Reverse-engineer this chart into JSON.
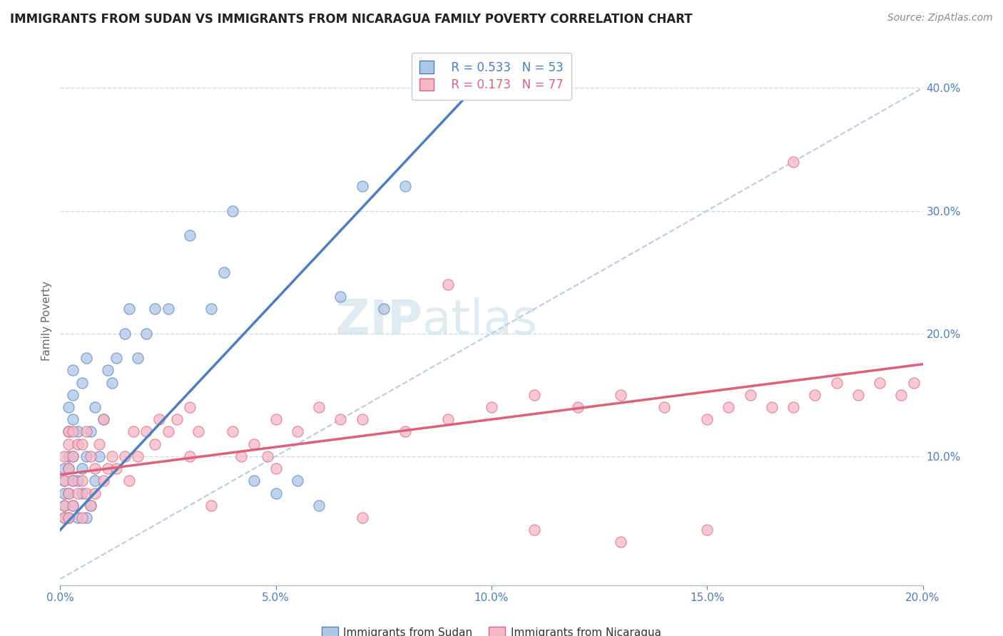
{
  "title": "IMMIGRANTS FROM SUDAN VS IMMIGRANTS FROM NICARAGUA FAMILY POVERTY CORRELATION CHART",
  "source": "Source: ZipAtlas.com",
  "ylabel": "Family Poverty",
  "xlim": [
    0.0,
    0.2
  ],
  "ylim": [
    -0.005,
    0.425
  ],
  "xticks": [
    0.0,
    0.05,
    0.1,
    0.15,
    0.2
  ],
  "yticks": [
    0.0,
    0.1,
    0.2,
    0.3,
    0.4
  ],
  "xtick_labels": [
    "0.0%",
    "5.0%",
    "10.0%",
    "15.0%",
    "20.0%"
  ],
  "ytick_labels": [
    "",
    "10.0%",
    "20.0%",
    "30.0%",
    "40.0%"
  ],
  "sudan_color": "#aec6e8",
  "nicaragua_color": "#f5b8c8",
  "sudan_line_color": "#4a7fc1",
  "nicaragua_line_color": "#e0607a",
  "dashed_line_color": "#b8cce4",
  "legend_R_sudan": "R = 0.533",
  "legend_N_sudan": "N = 53",
  "legend_R_nicaragua": "R = 0.173",
  "legend_N_nicaragua": "N = 77",
  "legend_label_sudan": "Immigrants from Sudan",
  "legend_label_nicaragua": "Immigrants from Nicaragua",
  "sudan_x": [
    0.001,
    0.001,
    0.001,
    0.001,
    0.001,
    0.002,
    0.002,
    0.002,
    0.002,
    0.002,
    0.002,
    0.003,
    0.003,
    0.003,
    0.003,
    0.003,
    0.003,
    0.004,
    0.004,
    0.004,
    0.005,
    0.005,
    0.005,
    0.006,
    0.006,
    0.006,
    0.007,
    0.007,
    0.008,
    0.008,
    0.009,
    0.01,
    0.011,
    0.012,
    0.013,
    0.015,
    0.016,
    0.018,
    0.02,
    0.022,
    0.025,
    0.03,
    0.035,
    0.038,
    0.04,
    0.045,
    0.05,
    0.055,
    0.06,
    0.065,
    0.07,
    0.075,
    0.08
  ],
  "sudan_y": [
    0.05,
    0.06,
    0.07,
    0.08,
    0.09,
    0.05,
    0.07,
    0.09,
    0.1,
    0.12,
    0.14,
    0.06,
    0.08,
    0.1,
    0.13,
    0.15,
    0.17,
    0.05,
    0.08,
    0.12,
    0.07,
    0.09,
    0.16,
    0.05,
    0.1,
    0.18,
    0.06,
    0.12,
    0.08,
    0.14,
    0.1,
    0.13,
    0.17,
    0.16,
    0.18,
    0.2,
    0.22,
    0.18,
    0.2,
    0.22,
    0.22,
    0.28,
    0.22,
    0.25,
    0.3,
    0.08,
    0.07,
    0.08,
    0.06,
    0.23,
    0.32,
    0.22,
    0.32
  ],
  "nicaragua_x": [
    0.001,
    0.001,
    0.001,
    0.001,
    0.002,
    0.002,
    0.002,
    0.002,
    0.002,
    0.003,
    0.003,
    0.003,
    0.003,
    0.004,
    0.004,
    0.005,
    0.005,
    0.005,
    0.006,
    0.006,
    0.007,
    0.007,
    0.008,
    0.008,
    0.009,
    0.01,
    0.01,
    0.011,
    0.012,
    0.013,
    0.015,
    0.016,
    0.017,
    0.018,
    0.02,
    0.022,
    0.023,
    0.025,
    0.027,
    0.03,
    0.032,
    0.035,
    0.04,
    0.042,
    0.045,
    0.048,
    0.05,
    0.055,
    0.06,
    0.065,
    0.07,
    0.08,
    0.09,
    0.1,
    0.11,
    0.12,
    0.13,
    0.14,
    0.15,
    0.155,
    0.16,
    0.165,
    0.17,
    0.175,
    0.18,
    0.185,
    0.19,
    0.195,
    0.198,
    0.03,
    0.05,
    0.07,
    0.09,
    0.11,
    0.13,
    0.15,
    0.17
  ],
  "nicaragua_y": [
    0.05,
    0.06,
    0.08,
    0.1,
    0.05,
    0.07,
    0.09,
    0.11,
    0.12,
    0.06,
    0.08,
    0.1,
    0.12,
    0.07,
    0.11,
    0.05,
    0.08,
    0.11,
    0.07,
    0.12,
    0.06,
    0.1,
    0.07,
    0.09,
    0.11,
    0.08,
    0.13,
    0.09,
    0.1,
    0.09,
    0.1,
    0.08,
    0.12,
    0.1,
    0.12,
    0.11,
    0.13,
    0.12,
    0.13,
    0.1,
    0.12,
    0.06,
    0.12,
    0.1,
    0.11,
    0.1,
    0.13,
    0.12,
    0.14,
    0.13,
    0.13,
    0.12,
    0.13,
    0.14,
    0.15,
    0.14,
    0.15,
    0.14,
    0.13,
    0.14,
    0.15,
    0.14,
    0.14,
    0.15,
    0.16,
    0.15,
    0.16,
    0.15,
    0.16,
    0.14,
    0.09,
    0.05,
    0.24,
    0.04,
    0.03,
    0.04,
    0.34
  ],
  "watermark_zip": "ZIP",
  "watermark_atlas": "atlas",
  "axis_color": "#4a7fc1",
  "grid_color": "#d0dce8",
  "title_color": "#222222",
  "tick_color": "#4a7fc1",
  "source_color": "#888888"
}
